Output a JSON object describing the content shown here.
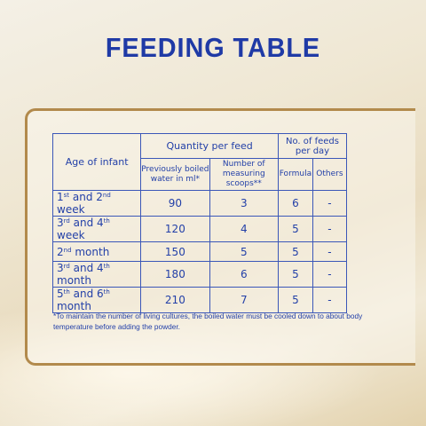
{
  "title": "FEEDING TABLE",
  "colors": {
    "title": "#1f3aa6",
    "frame": "#b28a4c",
    "table": "#2340a8"
  },
  "table": {
    "header": {
      "age": "Age of infant",
      "quantity": "Quantity per feed",
      "feeds": "No. of feeds per day",
      "water": "Previously boiled water in ml*",
      "scoops": "Number of measuring scoops**",
      "formula": "Formula",
      "others": "Others"
    },
    "rows": [
      {
        "a": "1",
        "a_sup": "st",
        "mid": " and 2",
        "b_sup": "nd",
        "tail": " week",
        "water": "90",
        "scoops": "3",
        "formula": "6",
        "others": "-"
      },
      {
        "a": "3",
        "a_sup": "rd",
        "mid": " and 4",
        "b_sup": "th",
        "tail": " week",
        "water": "120",
        "scoops": "4",
        "formula": "5",
        "others": "-"
      },
      {
        "a": "2",
        "a_sup": "nd",
        "mid": " month",
        "b_sup": "",
        "tail": "",
        "water": "150",
        "scoops": "5",
        "formula": "5",
        "others": "-"
      },
      {
        "a": "3",
        "a_sup": "rd",
        "mid": " and 4",
        "b_sup": "th",
        "tail": " month",
        "water": "180",
        "scoops": "6",
        "formula": "5",
        "others": "-"
      },
      {
        "a": "5",
        "a_sup": "th",
        "mid": " and 6",
        "b_sup": "th",
        "tail": " month",
        "water": "210",
        "scoops": "7",
        "formula": "5",
        "others": "-"
      }
    ]
  },
  "footnote": "*To maintain the number of living cultures, the boiled water must be cooled down to about body temperature before adding the powder."
}
